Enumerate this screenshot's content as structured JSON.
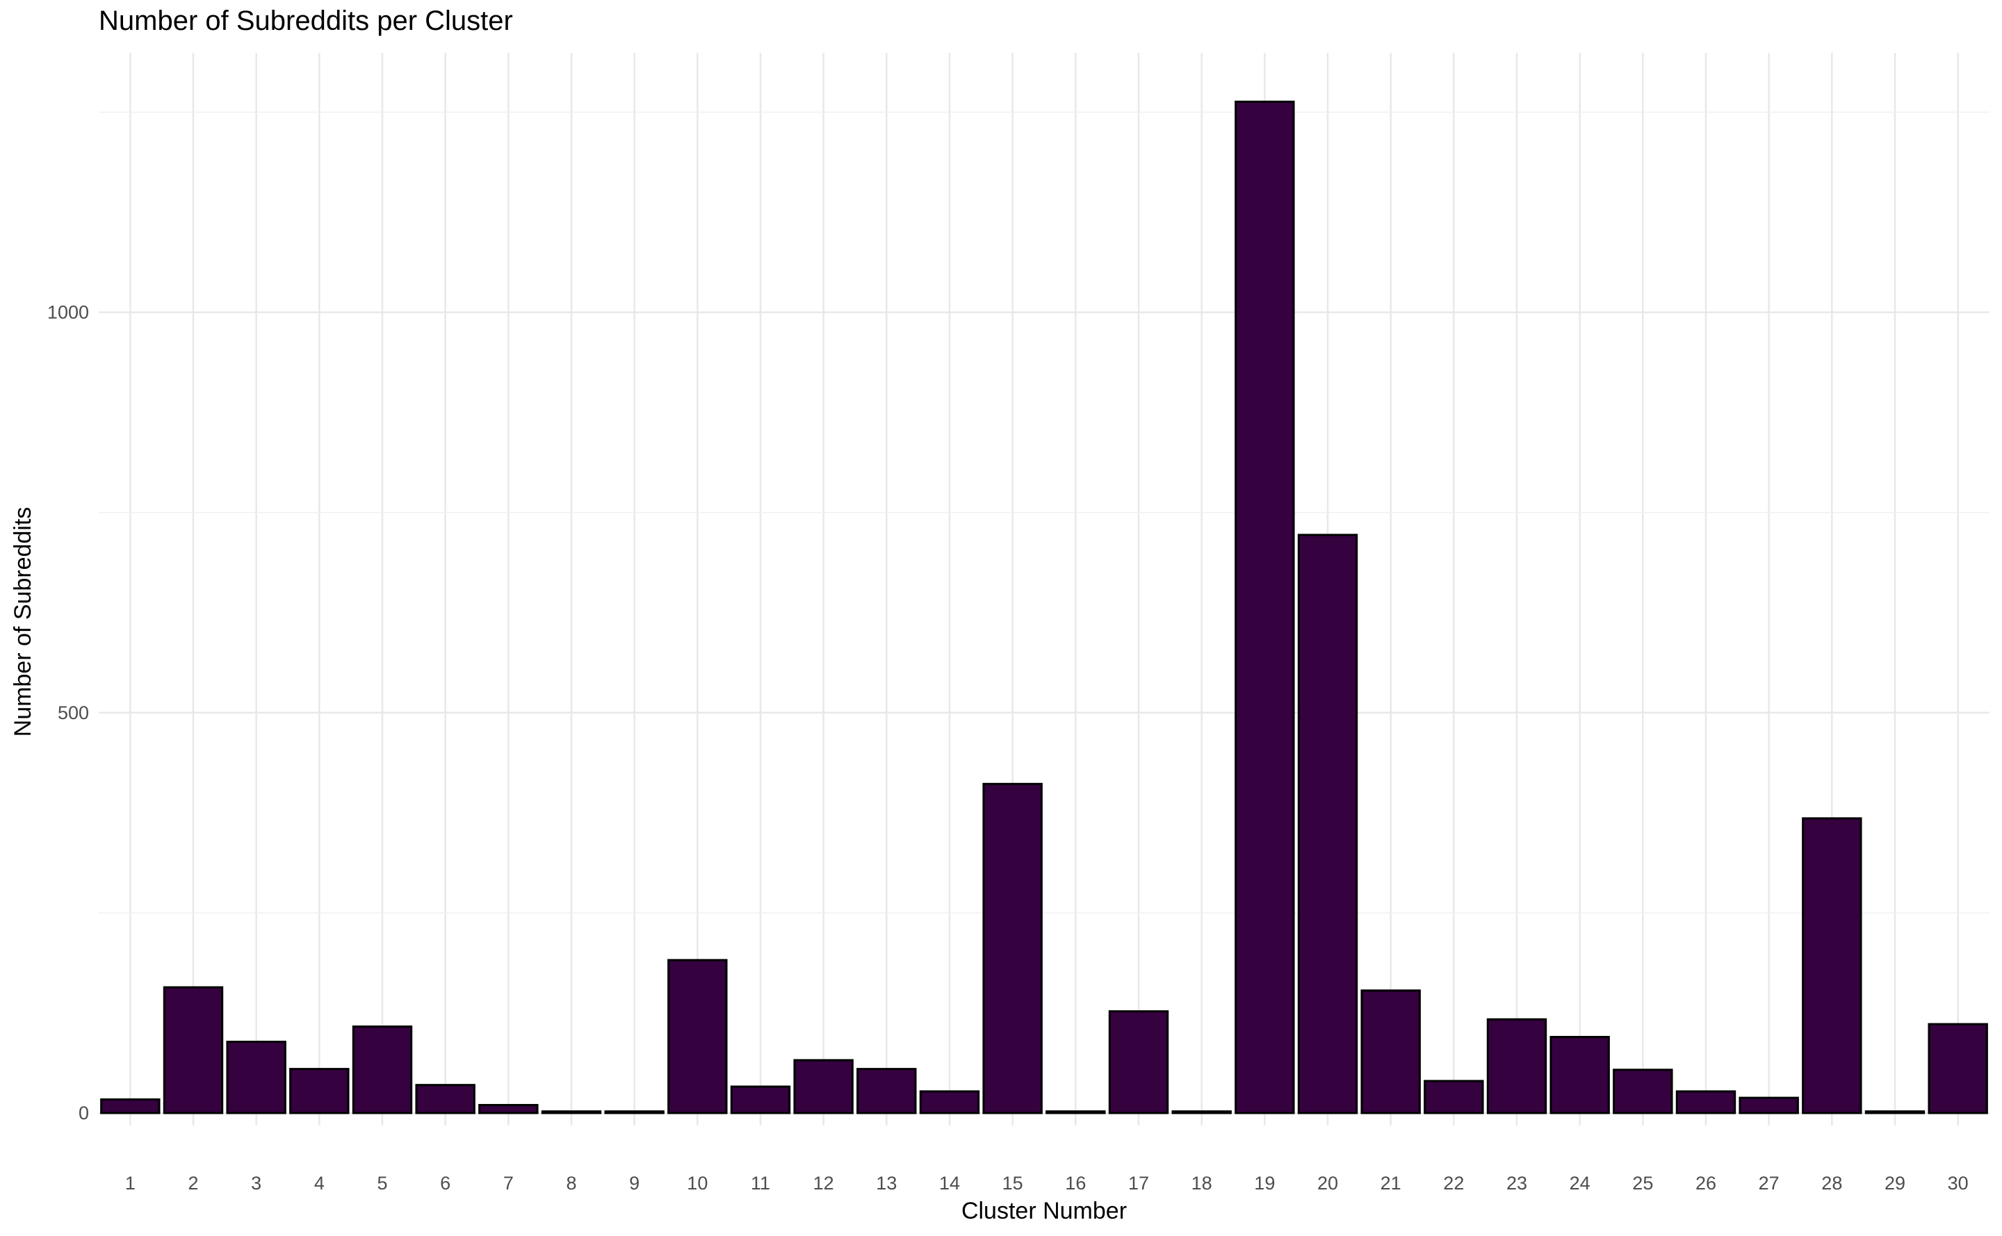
{
  "chart_data": {
    "type": "bar",
    "title": "Number of Subreddits per Cluster",
    "xlabel": "Cluster Number",
    "ylabel": "Number of Subreddits",
    "categories": [
      "1",
      "2",
      "3",
      "4",
      "5",
      "6",
      "7",
      "8",
      "9",
      "10",
      "11",
      "12",
      "13",
      "14",
      "15",
      "16",
      "17",
      "18",
      "19",
      "20",
      "21",
      "22",
      "23",
      "24",
      "25",
      "26",
      "27",
      "28",
      "29",
      "30"
    ],
    "values": [
      17,
      157,
      89,
      55,
      108,
      35,
      10,
      2,
      2,
      191,
      33,
      66,
      55,
      27,
      411,
      2,
      127,
      2,
      1263,
      722,
      153,
      40,
      117,
      95,
      54,
      27,
      19,
      368,
      2,
      111
    ],
    "y_ticks": [
      0,
      500,
      1000
    ],
    "ylim": [
      0,
      1325
    ],
    "grid": true,
    "bar_color": "#35013f",
    "bar_outline": "#000000",
    "grid_color": "#e8e8e8"
  }
}
